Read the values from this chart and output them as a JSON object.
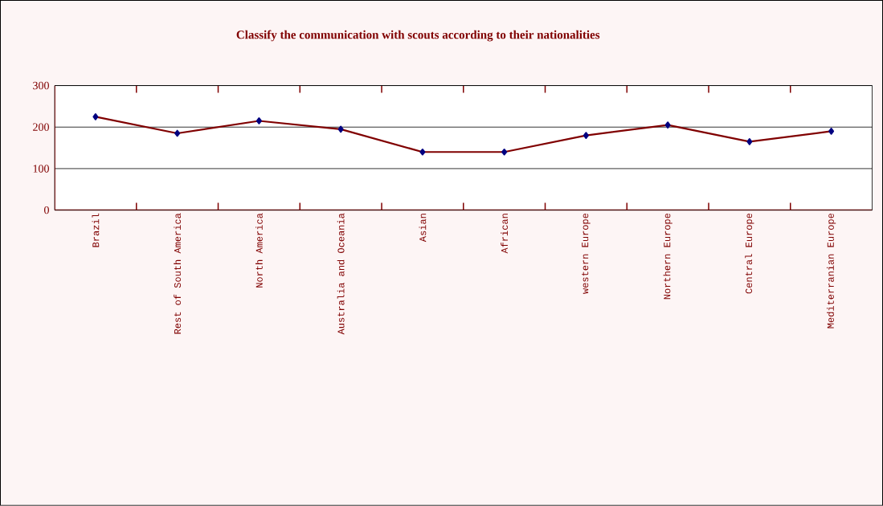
{
  "chart_data": {
    "type": "line",
    "title": "Classify the communication with scouts according to their nationalities",
    "categories": [
      "Brazil",
      "Rest of South America",
      "North America",
      "Australia and Oceania",
      "Asian",
      "African",
      "western Europe",
      "Northern Europe",
      "Central Europe",
      "Mediterranian Europe"
    ],
    "series": [
      {
        "color": "#800000",
        "values": [
          225,
          185,
          215,
          195,
          140,
          140,
          180,
          205,
          165,
          190
        ]
      }
    ],
    "ylim": [
      0,
      300
    ],
    "yticks": [
      0,
      100,
      200,
      300
    ],
    "grid": "y",
    "marker": "diamond",
    "line_style": "solid"
  }
}
